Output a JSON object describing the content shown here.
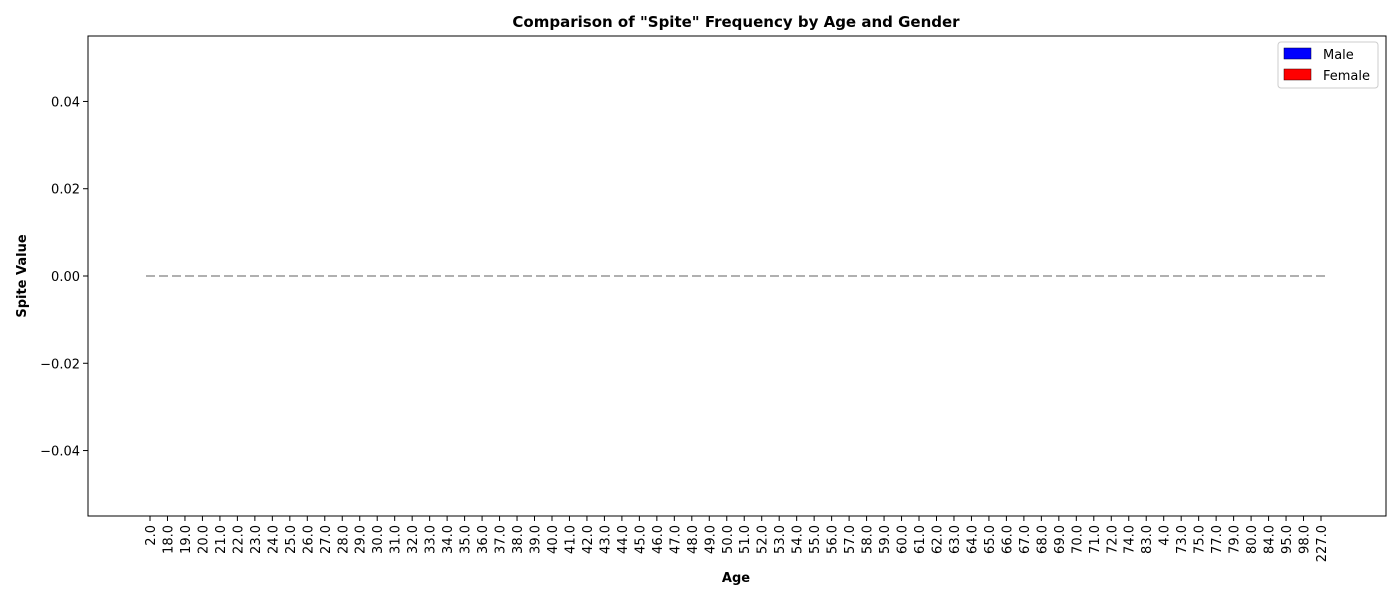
{
  "chart_data": {
    "type": "bar",
    "title": "Comparison of \"Spite\" Frequency by Age and Gender",
    "xlabel": "Age",
    "ylabel": "Spite Value",
    "ylim": [
      -0.055,
      0.055
    ],
    "yticks": [
      "0.04",
      "0.02",
      "0.00",
      "−0.02",
      "−0.04"
    ],
    "ytick_values": [
      0.04,
      0.02,
      0.0,
      -0.02,
      -0.04
    ],
    "categories": [
      "2.0",
      "18.0",
      "19.0",
      "20.0",
      "21.0",
      "22.0",
      "23.0",
      "24.0",
      "25.0",
      "26.0",
      "27.0",
      "28.0",
      "29.0",
      "30.0",
      "31.0",
      "32.0",
      "33.0",
      "34.0",
      "35.0",
      "36.0",
      "37.0",
      "38.0",
      "39.0",
      "40.0",
      "41.0",
      "42.0",
      "43.0",
      "44.0",
      "45.0",
      "46.0",
      "47.0",
      "48.0",
      "49.0",
      "50.0",
      "51.0",
      "52.0",
      "53.0",
      "54.0",
      "55.0",
      "56.0",
      "57.0",
      "58.0",
      "59.0",
      "60.0",
      "61.0",
      "62.0",
      "63.0",
      "64.0",
      "65.0",
      "66.0",
      "67.0",
      "68.0",
      "69.0",
      "70.0",
      "71.0",
      "72.0",
      "74.0",
      "83.0",
      "4.0",
      "73.0",
      "75.0",
      "77.0",
      "79.0",
      "80.0",
      "84.0",
      "95.0",
      "98.0",
      "227.0"
    ],
    "series": [
      {
        "name": "Male",
        "color": "#0000ff",
        "values": [
          0,
          0,
          0,
          0,
          0,
          0,
          0,
          0,
          0,
          0,
          0,
          0,
          0,
          0,
          0,
          0,
          0,
          0,
          0,
          0,
          0,
          0,
          0,
          0,
          0,
          0,
          0,
          0,
          0,
          0,
          0,
          0,
          0,
          0,
          0,
          0,
          0,
          0,
          0,
          0,
          0,
          0,
          0,
          0,
          0,
          0,
          0,
          0,
          0,
          0,
          0,
          0,
          0,
          0,
          0,
          0,
          0,
          0,
          0,
          0,
          0,
          0,
          0,
          0,
          0,
          0,
          0,
          0
        ]
      },
      {
        "name": "Female",
        "color": "#ff0000",
        "values": [
          0,
          0,
          0,
          0,
          0,
          0,
          0,
          0,
          0,
          0,
          0,
          0,
          0,
          0,
          0,
          0,
          0,
          0,
          0,
          0,
          0,
          0,
          0,
          0,
          0,
          0,
          0,
          0,
          0,
          0,
          0,
          0,
          0,
          0,
          0,
          0,
          0,
          0,
          0,
          0,
          0,
          0,
          0,
          0,
          0,
          0,
          0,
          0,
          0,
          0,
          0,
          0,
          0,
          0,
          0,
          0,
          0,
          0,
          0,
          0,
          0,
          0,
          0,
          0,
          0,
          0,
          0,
          0
        ]
      }
    ],
    "reference_line": {
      "y": 0.0,
      "style": "dashed",
      "color": "#808080"
    },
    "legend": "top-right",
    "grid": false
  }
}
